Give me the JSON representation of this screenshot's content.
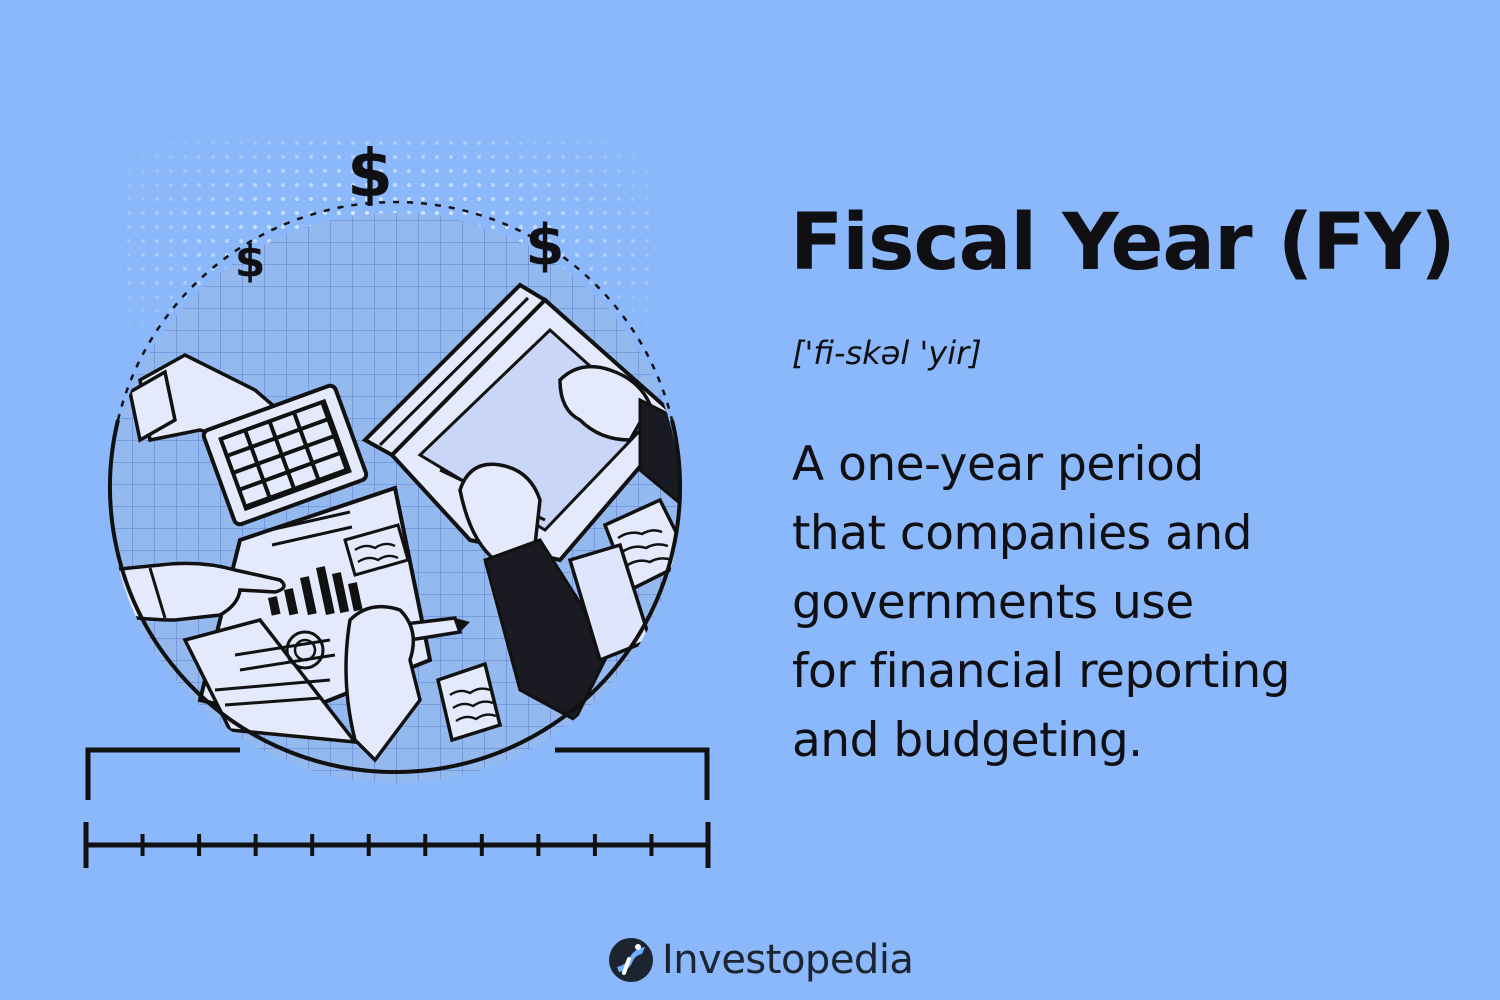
{
  "colors": {
    "background": "#8ab8fb",
    "ink": "#0f0f14",
    "circle_fill": "#93b9ef",
    "paper": "#dfe6fb"
  },
  "illustration": {
    "coin_symbols": [
      "$",
      "$",
      "$"
    ],
    "icons": [
      "calculator-icon",
      "laptop-icon",
      "bar-chart-icon",
      "magnifier-icon",
      "pen-icon",
      "note-icon",
      "timeline-icon"
    ]
  },
  "term": {
    "title": "Fiscal Year (FY)",
    "pronunciation": "['fi-skəl 'yir]",
    "definition_lines": [
      "A one-year period",
      "that companies and",
      "governments use",
      "for financial reporting",
      "and budgeting."
    ]
  },
  "brand": {
    "name": "Investopedia",
    "logo_icon": "investopedia-logo-icon"
  }
}
